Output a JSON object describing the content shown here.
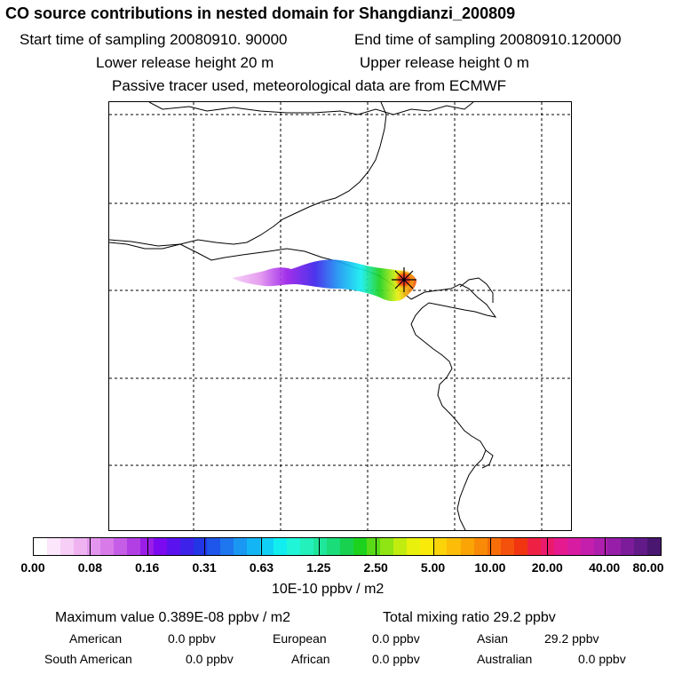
{
  "header": {
    "title": "CO  source contributions in nested domain for Shangdianzi_200809",
    "start_label": "Start time of sampling 20080910. 90000",
    "end_label": "End time of sampling 20080910.120000",
    "lower_label": "Lower release height   20 m",
    "upper_label": "Upper release height    0 m",
    "tracer_note": "Passive tracer used, meteorological data are from ECMWF"
  },
  "colorbar": {
    "colors": [
      "#ffffff",
      "#fbe6fb",
      "#f6cef6",
      "#efb3f2",
      "#e496ef",
      "#d87be9",
      "#c65de6",
      "#b23fe3",
      "#9a1de8",
      "#7b0af0",
      "#5a13ef",
      "#3d22ea",
      "#2336e6",
      "#1e55ea",
      "#1e77ee",
      "#1a97f2",
      "#14b5f5",
      "#10d0f5",
      "#12eef0",
      "#20f5d8",
      "#24f0bb",
      "#1fe69b",
      "#1adc78",
      "#18d24f",
      "#1cd21d",
      "#58db16",
      "#8fe413",
      "#c1ec10",
      "#e8f00c",
      "#faea09",
      "#fcd308",
      "#fcbc07",
      "#fba406",
      "#f98a07",
      "#f76e09",
      "#f4510c",
      "#f13511",
      "#ee2144",
      "#eb1a6c",
      "#e51a8e",
      "#d71ca2",
      "#c41fac",
      "#af1fae",
      "#961ea8",
      "#7c1c9b",
      "#621a88",
      "#4a1770"
    ],
    "tick_labels": [
      "0.00",
      "0.08",
      "0.16",
      "0.31",
      "0.63",
      "1.25",
      "2.50",
      "5.00",
      "10.00",
      "20.00",
      "40.00",
      "80.00"
    ],
    "unit": "10E-10 ppbv / m2"
  },
  "stats": {
    "maximum": "Maximum value  0.389E-08 ppbv / m2",
    "total": "Total mixing ratio       29.2 ppbv",
    "american_label": "American",
    "american_value": "0.0 ppbv",
    "european_label": "European",
    "european_value": "0.0 ppbv",
    "asian_label": "Asian",
    "asian_value": "29.2 ppbv",
    "south_american_label": "South American",
    "south_american_value": "0.0 ppbv",
    "african_label": "African",
    "african_value": "0.0 ppbv",
    "australian_label": "Australian",
    "australian_value": "0.0 ppbv"
  }
}
